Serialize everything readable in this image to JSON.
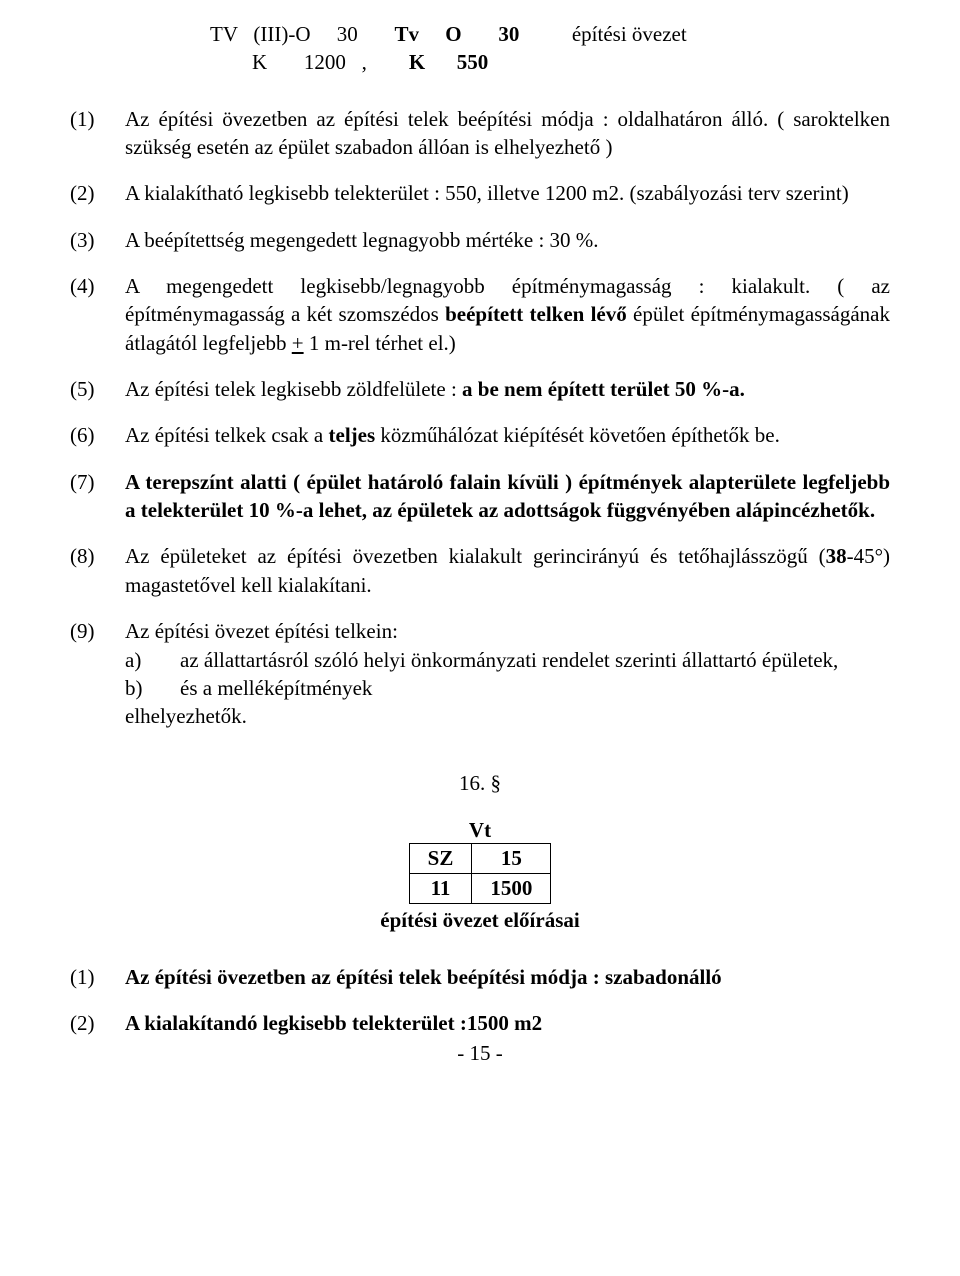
{
  "header": {
    "line1_left": "TV   (III)-O     30",
    "line1_bold": "Tv     O       30",
    "line1_right": "építési övezet",
    "line2_left": "        K       1200   ,",
    "line2_bold": "K      550"
  },
  "paragraphs": {
    "p1": {
      "num": "(1)",
      "text": "Az építési övezetben az építési telek beépítési módja : oldalhatáron álló. ( saroktelken szükség esetén az épület szabadon állóan is elhelyezhető )"
    },
    "p2": {
      "num": "(2)",
      "text": "A kialakítható legkisebb telekterület : 550, illetve 1200 m2. (szabályozási terv szerint)"
    },
    "p3": {
      "num": "(3)",
      "text": "A beépítettség megengedett legnagyobb mértéke : 30 %."
    },
    "p4": {
      "num": "(4)",
      "part1": "A megengedett legkisebb/legnagyobb építménymagasság : kialakult. ( az építménymagasság a két szomszédos ",
      "bold": "beépített telken lévő",
      "part2": " épület építménymagasságának átlagától legfeljebb ",
      "under": "+",
      "part3": " 1 m-rel térhet el.)"
    },
    "p5": {
      "num": "(5)",
      "lead": "Az építési telek legkisebb zöldfelülete : ",
      "bold": "a be nem épített terület 50 %-a."
    },
    "p6": {
      "num": "(6)",
      "lead": "Az építési telkek csak a ",
      "bold1": "teljes",
      "tail": " közműhálózat kiépítését követően építhetők be."
    },
    "p7": {
      "num": "(7)",
      "bold": "A terepszínt alatti ( épület határoló falain kívüli ) építmények alapterülete legfeljebb a telekterület 10 %-a lehet, az épületek az adottságok függvényében alápincézhetők."
    },
    "p8": {
      "num": "(8)",
      "lead": "Az épületeket az építési övezetben kialakult gerincirányú és tetőhajlásszögű (",
      "bold": "38",
      "tail": "-45°) magastetővel kell kialakítani."
    },
    "p9": {
      "num": "(9)",
      "intro": "Az építési övezet építési telkein:",
      "a_label": "a)",
      "a_text": "az állattartásról szóló helyi önkormányzati rendelet szerinti állattartó épületek,",
      "b_label": "b)",
      "b_text": "és a melléképítmények",
      "closing": "elhelyezhetők."
    }
  },
  "section": "16. §",
  "vt": {
    "title": "Vt",
    "r1c1": "SZ",
    "r1c2": "15",
    "r2c1": "11",
    "r2c2": "1500",
    "caption": "építési övezet előírásai"
  },
  "bottom": {
    "p1": {
      "num": "(1)",
      "lead": "Az építési övezetben az építési telek beépítési módja : szabadonálló"
    },
    "p2": {
      "num": "(2)",
      "lead": "A kialakítandó legkisebb telekterület :1500 m2"
    }
  },
  "pagenum": "- 15 -"
}
